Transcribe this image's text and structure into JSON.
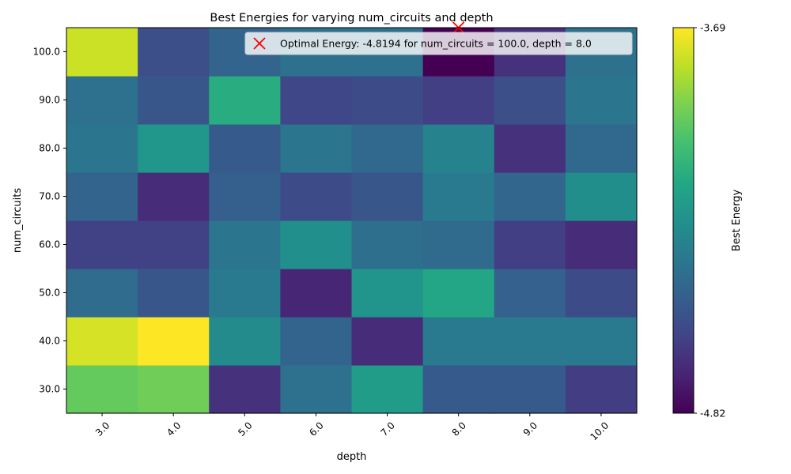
{
  "chart_data": {
    "type": "heatmap",
    "title": "Best Energies for varying num_circuits and depth",
    "xlabel": "depth",
    "ylabel": "num_circuits",
    "x": [
      "3.0",
      "4.0",
      "5.0",
      "6.0",
      "7.0",
      "8.0",
      "9.0",
      "10.0"
    ],
    "y": [
      "30.0",
      "40.0",
      "50.0",
      "60.0",
      "70.0",
      "80.0",
      "90.0",
      "100.0"
    ],
    "values": [
      [
        -3.96,
        -3.94,
        -4.66,
        -4.4,
        -4.2,
        -4.5,
        -4.5,
        -4.62
      ],
      [
        -3.76,
        -3.69,
        -4.28,
        -4.46,
        -4.68,
        -4.36,
        -4.36,
        -4.36
      ],
      [
        -4.42,
        -4.52,
        -4.36,
        -4.7,
        -4.24,
        -4.15,
        -4.47,
        -4.56
      ],
      [
        -4.6,
        -4.6,
        -4.38,
        -4.26,
        -4.41,
        -4.43,
        -4.61,
        -4.68
      ],
      [
        -4.46,
        -4.68,
        -4.48,
        -4.56,
        -4.52,
        -4.36,
        -4.45,
        -4.27
      ],
      [
        -4.38,
        -4.23,
        -4.5,
        -4.38,
        -4.44,
        -4.32,
        -4.66,
        -4.44
      ],
      [
        -4.4,
        -4.52,
        -4.12,
        -4.58,
        -4.56,
        -4.61,
        -4.55,
        -4.38
      ],
      [
        -3.78,
        -4.55,
        -4.46,
        -4.4,
        -4.4,
        -4.8194,
        -4.66,
        -4.4
      ]
    ],
    "vmin": -4.82,
    "vmax": -3.69,
    "colormap": "viridis",
    "colorbar": {
      "label": "Best Energy",
      "tick_labels": [
        "-3.69",
        "-4.82"
      ]
    },
    "optimum": {
      "x": "8.0",
      "y": "100.0",
      "marker": "x",
      "color": "#ff0000",
      "legend_label": "Optimal Energy: -4.8194 for num_circuits = 100.0, depth = 8.0",
      "legend_placement": "upper-right"
    },
    "x_tick_rotation": 45
  }
}
